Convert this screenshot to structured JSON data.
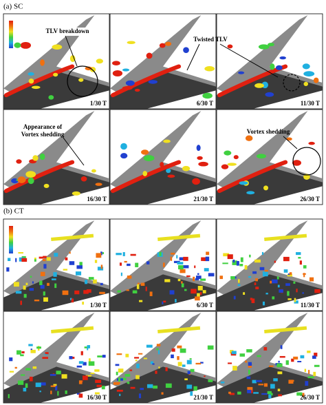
{
  "panel_a": {
    "label": "(a) SC",
    "frames": [
      "1/30 T",
      "6/30 T",
      "11/30 T",
      "16/30 T",
      "21/30 T",
      "26/30 T"
    ],
    "annotations": [
      {
        "lines": [
          "TLV breakdown"
        ]
      },
      {
        "lines": [
          "Twisted TLV"
        ]
      },
      {
        "lines": [
          "Appearance of",
          "Vortex shedding"
        ]
      },
      {
        "lines": [
          "Vortex shedding"
        ]
      }
    ]
  },
  "panel_b": {
    "label": "(b) CT",
    "frames": [
      "1/30 T",
      "6/30 T",
      "11/30 T",
      "16/30 T",
      "21/30 T",
      "26/30 T"
    ]
  }
}
